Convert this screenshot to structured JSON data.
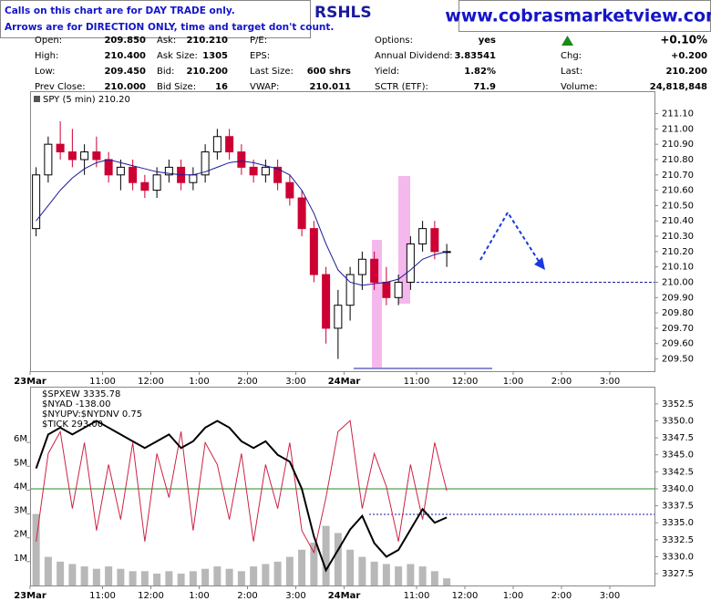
{
  "notes": [
    "Calls on this chart are for DAY TRADE only.",
    "Arrows are for DIRECTION ONLY, time and target don't count."
  ],
  "symbol": "RSHLS",
  "website": "www.cobrasmarketview.com",
  "quote": {
    "rows": [
      [
        [
          "Open:",
          "209.850"
        ],
        [
          "Ask:",
          "210.210"
        ],
        [
          "P/E:"
        ],
        [
          "Options:",
          "yes"
        ],
        [
          "+0.10%"
        ]
      ],
      [
        [
          "High:",
          "210.400"
        ],
        [
          "Ask Size:",
          "1305"
        ],
        [
          "EPS:"
        ],
        [
          "Annual Dividend:",
          "3.83541"
        ],
        [
          "Chg:",
          "+0.200"
        ]
      ],
      [
        [
          "Low:",
          "209.450"
        ],
        [
          "Bid:",
          "210.200"
        ],
        [
          "Last Size:",
          "600 shrs"
        ],
        [
          "Yield:",
          "1.82%"
        ],
        [
          "Last:",
          "210.200"
        ]
      ],
      [
        [
          "Prev Close:",
          "210.000"
        ],
        [
          "Bid Size:",
          "16"
        ],
        [
          "VWAP:",
          "210.011"
        ],
        [
          "SCTR (ETF):",
          "71.9"
        ],
        [
          "Volume:",
          "24,818,848"
        ]
      ]
    ]
  },
  "chart_data": [
    {
      "type": "candlestick",
      "title": "SPY (5 min) 210.20",
      "xlim": [
        0,
        51.7
      ],
      "xticks": [
        {
          "value": 0,
          "label": "23Mar"
        },
        {
          "value": 6,
          "label": "11:00"
        },
        {
          "value": 10,
          "label": "12:00"
        },
        {
          "value": 14,
          "label": "1:00"
        },
        {
          "value": 18,
          "label": "2:00"
        },
        {
          "value": 22,
          "label": "3:00"
        },
        {
          "value": 26,
          "label": "24Mar"
        },
        {
          "value": 32,
          "label": "11:00"
        },
        {
          "value": 36,
          "label": "12:00"
        },
        {
          "value": 40,
          "label": "1:00"
        },
        {
          "value": 44,
          "label": "2:00"
        },
        {
          "value": 48,
          "label": "3:00"
        }
      ],
      "ylim": [
        209.42,
        211.24
      ],
      "yticks": [
        {
          "value": 209.5,
          "label": "209.50"
        },
        {
          "value": 209.6,
          "label": "209.60"
        },
        {
          "value": 209.7,
          "label": "209.70"
        },
        {
          "value": 209.8,
          "label": "209.80"
        },
        {
          "value": 209.9,
          "label": "209.90"
        },
        {
          "value": 210.0,
          "label": "210.00"
        },
        {
          "value": 210.1,
          "label": "210.10"
        },
        {
          "value": 210.2,
          "label": "210.20"
        },
        {
          "value": 210.3,
          "label": "210.30"
        },
        {
          "value": 210.4,
          "label": "210.40"
        },
        {
          "value": 210.5,
          "label": "210.50"
        },
        {
          "value": 210.6,
          "label": "210.60"
        },
        {
          "value": 210.7,
          "label": "210.70"
        },
        {
          "value": 210.8,
          "label": "210.80"
        },
        {
          "value": 210.9,
          "label": "210.90"
        },
        {
          "value": 211.0,
          "label": "211.00"
        },
        {
          "value": 211.1,
          "label": "211.10"
        }
      ],
      "up_color": "#000000",
      "down_color": "#cc0033",
      "ohlc": [
        [
          210.35,
          210.75,
          210.3,
          210.7
        ],
        [
          210.7,
          210.95,
          210.65,
          210.9
        ],
        [
          210.9,
          211.05,
          210.8,
          210.85
        ],
        [
          210.85,
          211.0,
          210.75,
          210.8
        ],
        [
          210.8,
          210.9,
          210.7,
          210.85
        ],
        [
          210.85,
          210.95,
          210.75,
          210.8
        ],
        [
          210.8,
          210.85,
          210.65,
          210.7
        ],
        [
          210.7,
          210.8,
          210.6,
          210.75
        ],
        [
          210.75,
          210.8,
          210.6,
          210.65
        ],
        [
          210.65,
          210.7,
          210.55,
          210.6
        ],
        [
          210.6,
          210.75,
          210.55,
          210.7
        ],
        [
          210.7,
          210.8,
          210.65,
          210.75
        ],
        [
          210.75,
          210.8,
          210.6,
          210.65
        ],
        [
          210.65,
          210.75,
          210.6,
          210.7
        ],
        [
          210.7,
          210.9,
          210.65,
          210.85
        ],
        [
          210.85,
          211.0,
          210.8,
          210.95
        ],
        [
          210.95,
          211.0,
          210.8,
          210.85
        ],
        [
          210.85,
          210.9,
          210.7,
          210.75
        ],
        [
          210.75,
          210.8,
          210.65,
          210.7
        ],
        [
          210.7,
          210.8,
          210.65,
          210.75
        ],
        [
          210.75,
          210.8,
          210.6,
          210.65
        ],
        [
          210.65,
          210.7,
          210.5,
          210.55
        ],
        [
          210.55,
          210.6,
          210.3,
          210.35
        ],
        [
          210.35,
          210.4,
          210.0,
          210.05
        ],
        [
          210.05,
          210.1,
          209.6,
          209.7
        ],
        [
          209.7,
          209.95,
          209.5,
          209.85
        ],
        [
          209.85,
          210.1,
          209.75,
          210.05
        ],
        [
          210.05,
          210.2,
          209.95,
          210.15
        ],
        [
          210.15,
          210.2,
          209.95,
          210.0
        ],
        [
          210.0,
          210.1,
          209.85,
          209.9
        ],
        [
          209.9,
          210.05,
          209.85,
          210.0
        ],
        [
          210.0,
          210.3,
          209.95,
          210.25
        ],
        [
          210.25,
          210.4,
          210.2,
          210.35
        ],
        [
          210.35,
          210.4,
          210.15,
          210.2
        ],
        [
          210.2,
          210.25,
          210.1,
          210.2
        ]
      ],
      "ma": {
        "color": "#1a1a9a",
        "values": [
          210.4,
          210.5,
          210.6,
          210.68,
          210.74,
          210.78,
          210.8,
          210.78,
          210.76,
          210.74,
          210.72,
          210.71,
          210.7,
          210.7,
          210.72,
          210.75,
          210.78,
          210.79,
          210.78,
          210.76,
          210.74,
          210.7,
          210.6,
          210.45,
          210.25,
          210.08,
          210.0,
          209.98,
          209.99,
          210.0,
          210.02,
          210.08,
          210.15,
          210.18,
          210.2
        ]
      },
      "hline": 210.0,
      "hline_color": "#1a1aa0"
    },
    {
      "type": "multi",
      "xlim": [
        0,
        51.7
      ],
      "xticks": [
        {
          "value": 0,
          "label": "23Mar"
        },
        {
          "value": 6,
          "label": "11:00"
        },
        {
          "value": 10,
          "label": "12:00"
        },
        {
          "value": 14,
          "label": "1:00"
        },
        {
          "value": 18,
          "label": "2:00"
        },
        {
          "value": 22,
          "label": "3:00"
        },
        {
          "value": 26,
          "label": "24Mar"
        },
        {
          "value": 32,
          "label": "11:00"
        },
        {
          "value": 36,
          "label": "12:00"
        },
        {
          "value": 40,
          "label": "1:00"
        },
        {
          "value": 44,
          "label": "2:00"
        },
        {
          "value": 48,
          "label": "3:00"
        }
      ],
      "ylim": [
        3325.76,
        3354.9
      ],
      "yticks": [
        {
          "value": 3327.5,
          "label": "3327.5"
        },
        {
          "value": 3330,
          "label": "3330.0"
        },
        {
          "value": 3332.5,
          "label": "3332.5"
        },
        {
          "value": 3335,
          "label": "3335.0"
        },
        {
          "value": 3337.5,
          "label": "3337.5"
        },
        {
          "value": 3340,
          "label": "3340.0"
        },
        {
          "value": 3342.5,
          "label": "3342.5"
        },
        {
          "value": 3345,
          "label": "3345.0"
        },
        {
          "value": 3347.5,
          "label": "3347.5"
        },
        {
          "value": 3350,
          "label": "3350.0"
        },
        {
          "value": 3352.5,
          "label": "3352.5"
        }
      ],
      "y2lim": [
        0,
        8.3
      ],
      "y2ticks": [
        {
          "value": 1,
          "label": "1M"
        },
        {
          "value": 2,
          "label": "2M"
        },
        {
          "value": 3,
          "label": "3M"
        },
        {
          "value": 4,
          "label": "4M"
        },
        {
          "value": 5,
          "label": "5M"
        },
        {
          "value": 6,
          "label": "6M"
        }
      ],
      "y3lim": [
        -1000,
        800
      ],
      "legend": [
        "$SPXEW 3335.78",
        "$NYAD -138.00",
        "$NYUPV:$NYDNV 0.75",
        "$TICK 293.00"
      ],
      "series": [
        {
          "kind": "bar",
          "axis": "y2",
          "color": "#b8b8b8",
          "values": [
            3,
            1.2,
            1,
            0.9,
            0.8,
            0.7,
            0.8,
            0.7,
            0.6,
            0.6,
            0.5,
            0.6,
            0.5,
            0.6,
            0.7,
            0.8,
            0.7,
            0.6,
            0.8,
            0.9,
            1,
            1.2,
            1.5,
            1.8,
            2.5,
            2.2,
            1.5,
            1.2,
            1,
            0.9,
            0.8,
            0.9,
            0.8,
            0.6,
            0.3
          ]
        },
        {
          "kind": "line",
          "axis": "y3",
          "color": "#cc2244",
          "values": [
            -600,
            200,
            400,
            -300,
            300,
            -500,
            100,
            -400,
            300,
            -600,
            200,
            -200,
            400,
            -500,
            300,
            100,
            -400,
            200,
            -600,
            100,
            -300,
            300,
            -500,
            -700,
            -200,
            400,
            500,
            -300,
            200,
            -100,
            -600,
            100,
            -400,
            300,
            -138
          ]
        },
        {
          "kind": "line",
          "axis": "y",
          "color": "#000000",
          "values": [
            3343,
            3348,
            3349,
            3348,
            3349,
            3350,
            3349,
            3348,
            3347,
            3346,
            3347,
            3348,
            3346,
            3347,
            3349,
            3350,
            3349,
            3347,
            3346,
            3347,
            3345,
            3344,
            3340,
            3333,
            3328,
            3331,
            3334,
            3336,
            3332,
            3330,
            3331,
            3334,
            3337,
            3335,
            3335.78
          ]
        }
      ]
    }
  ]
}
